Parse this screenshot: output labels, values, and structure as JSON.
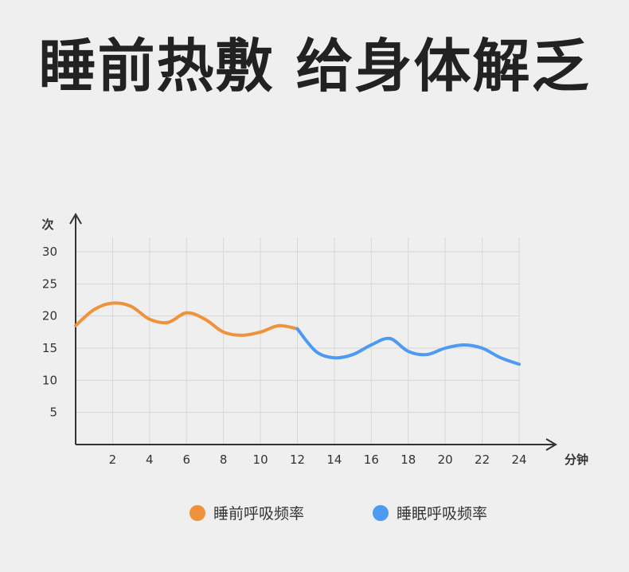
{
  "title": "睡前热敷 给身体解乏",
  "chart_data": {
    "type": "line",
    "ylabel": "次",
    "xlabel": "分钟",
    "ylim": [
      0,
      30
    ],
    "xlim": [
      0,
      24
    ],
    "yticks": [
      5,
      10,
      15,
      20,
      25,
      30
    ],
    "xticks": [
      2,
      4,
      6,
      8,
      10,
      12,
      14,
      16,
      18,
      20,
      22,
      24
    ],
    "grid": true,
    "legend_position": "bottom",
    "series": [
      {
        "name": "睡前呼吸频率",
        "color": "#f0923a",
        "x": [
          0,
          1,
          2,
          3,
          4,
          5,
          6,
          7,
          8,
          9,
          10,
          11,
          12
        ],
        "y": [
          18.5,
          21,
          22,
          21.5,
          19.5,
          19,
          20.5,
          19.5,
          17.5,
          17,
          17.5,
          18.5,
          18
        ]
      },
      {
        "name": "睡眠呼吸频率",
        "color": "#4d9af2",
        "x": [
          12,
          13,
          14,
          15,
          16,
          17,
          18,
          19,
          20,
          21,
          22,
          23,
          24
        ],
        "y": [
          18,
          14.5,
          13.5,
          14,
          15.5,
          16.5,
          14.5,
          14,
          15,
          15.5,
          15,
          13.5,
          12.5
        ]
      }
    ]
  }
}
